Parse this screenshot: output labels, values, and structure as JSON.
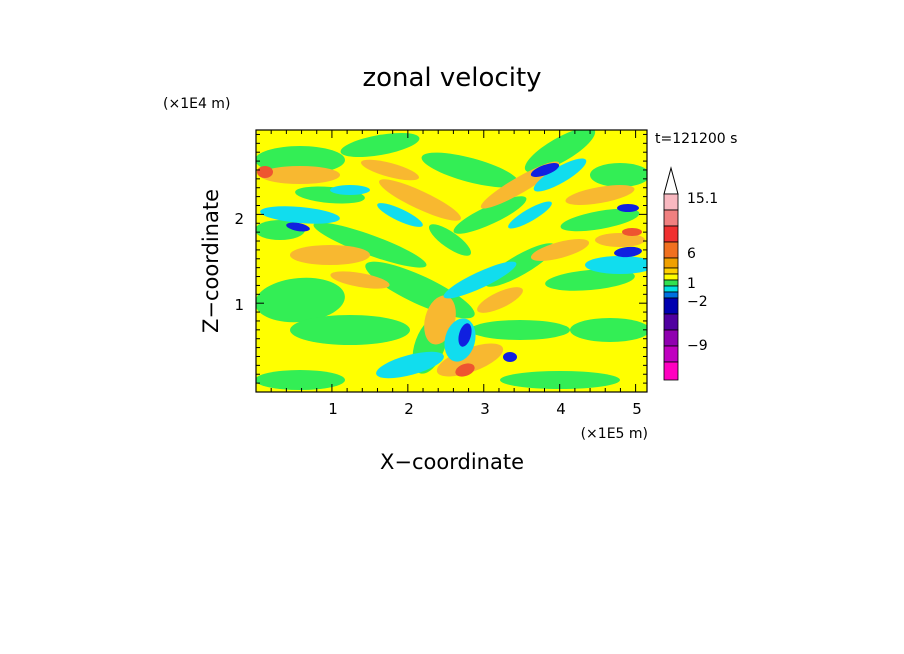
{
  "chart_data": {
    "type": "heatmap",
    "title": "zonal velocity",
    "xlabel": "X−coordinate",
    "ylabel": "Z−coordinate",
    "x_scale_label": "(×1E5 m)",
    "y_scale_label": "(×1E4 m)",
    "time_label": "t=121200 s",
    "xlim": [
      0,
      5.15
    ],
    "ylim": [
      0,
      2.95
    ],
    "x_ticks": [
      "1",
      "2",
      "3",
      "4",
      "5"
    ],
    "y_ticks": [
      "1",
      "2"
    ],
    "colorbar": {
      "labels": [
        "15.1",
        "6",
        "1",
        "−2",
        "−9"
      ],
      "levels_top_to_bottom": [
        {
          "color": "#ffffff",
          "shape": "arrow"
        },
        {
          "color": "#f8b8c0"
        },
        {
          "color": "#f08080"
        },
        {
          "color": "#f03030"
        },
        {
          "color": "#f07020"
        },
        {
          "color": "#f0a000"
        },
        {
          "color": "#ffd000"
        },
        {
          "color": "#ffff00"
        },
        {
          "color": "#30e050"
        },
        {
          "color": "#00e0e0"
        },
        {
          "color": "#0070e0"
        },
        {
          "color": "#0000b0"
        },
        {
          "color": "#5000a0"
        },
        {
          "color": "#9000b0"
        },
        {
          "color": "#c000c0"
        },
        {
          "color": "#ff00c0"
        }
      ]
    },
    "field_colors": {
      "background": "#ffff00",
      "green": "#33ee55",
      "orange": "#f8b830",
      "cyan": "#11ddee",
      "blue": "#1020e0",
      "red": "#ee5530"
    }
  }
}
